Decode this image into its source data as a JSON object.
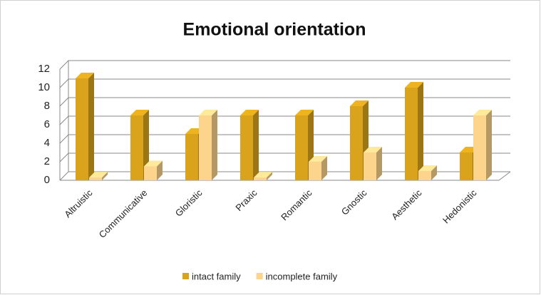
{
  "chart_data": {
    "type": "bar3d",
    "title": "Emotional orientation",
    "categories": [
      "Altruistic",
      "Communicative",
      "Gloristic",
      "Praxic",
      "Romantic",
      "Gnostic",
      "Aesthetic",
      "Hedonistic"
    ],
    "series": [
      {
        "name": "intact family",
        "color": "#d9a31c",
        "values": [
          11,
          7,
          5,
          7,
          7,
          8,
          10,
          3
        ]
      },
      {
        "name": "incomplete family",
        "color": "#fcd48c",
        "values": [
          0.3,
          1.5,
          7,
          0.3,
          2,
          3,
          1,
          7
        ]
      }
    ],
    "ylim": [
      0,
      12
    ],
    "yticks": [
      0,
      2,
      4,
      6,
      8,
      10,
      12
    ],
    "grid": true,
    "legend": "bottom"
  }
}
